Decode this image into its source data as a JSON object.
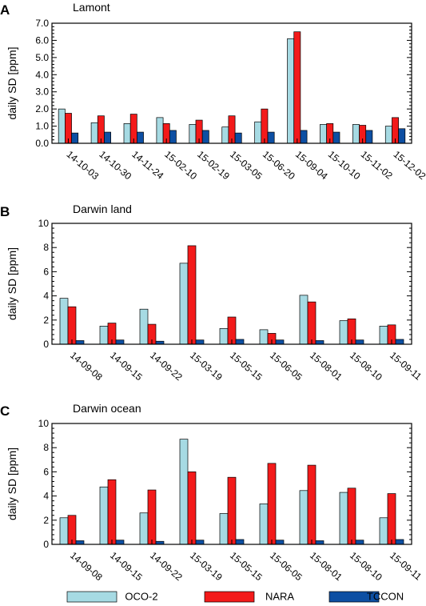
{
  "colors": {
    "OCO-2": "#a6dae3",
    "NARA": "#f31a1a",
    "TCCON": "#0d4fa3"
  },
  "legend": [
    "OCO-2",
    "NARA",
    "TCCON"
  ],
  "chart_data": [
    {
      "type": "bar",
      "panel": "A",
      "title": "Lamont",
      "ylabel": "daily SD [ppm]",
      "ylim": [
        0,
        7
      ],
      "yticks": [
        "0.0",
        "1.0",
        "2.0",
        "3.0",
        "4.0",
        "5.0",
        "6.0",
        "7.0"
      ],
      "categories": [
        "14-10-03",
        "14-10-30",
        "14-11-24",
        "15-02-10",
        "15-02-19",
        "15-03-05",
        "15-06-20",
        "15-09-04",
        "15-10-10",
        "15-11-02",
        "15-12-02"
      ],
      "series": [
        {
          "name": "OCO-2",
          "values": [
            2.0,
            1.2,
            1.15,
            1.5,
            1.1,
            0.95,
            1.25,
            6.1,
            1.1,
            1.1,
            1.0
          ]
        },
        {
          "name": "NARA",
          "values": [
            1.75,
            1.6,
            1.7,
            1.15,
            1.35,
            1.6,
            2.0,
            6.5,
            1.15,
            1.05,
            1.5
          ]
        },
        {
          "name": "TCCON",
          "values": [
            0.6,
            0.65,
            0.65,
            0.75,
            0.75,
            0.6,
            0.65,
            0.75,
            0.65,
            0.75,
            0.85
          ]
        }
      ]
    },
    {
      "type": "bar",
      "panel": "B",
      "title": "Darwin land",
      "ylabel": "daily SD [ppm]",
      "ylim": [
        0,
        10
      ],
      "yticks": [
        "0",
        "2",
        "4",
        "6",
        "8",
        "10"
      ],
      "categories": [
        "14-09-08",
        "14-09-15",
        "14-09-22",
        "15-03-19",
        "15-05-15",
        "15-06-05",
        "15-08-01",
        "15-08-10",
        "15-09-11"
      ],
      "series": [
        {
          "name": "OCO-2",
          "values": [
            3.8,
            1.5,
            2.9,
            6.7,
            1.3,
            1.2,
            4.05,
            1.95,
            1.5
          ]
        },
        {
          "name": "NARA",
          "values": [
            3.1,
            1.75,
            1.65,
            8.15,
            2.25,
            0.9,
            3.5,
            2.1,
            1.6
          ]
        },
        {
          "name": "TCCON",
          "values": [
            0.3,
            0.35,
            0.25,
            0.35,
            0.4,
            0.35,
            0.3,
            0.35,
            0.4
          ]
        }
      ]
    },
    {
      "type": "bar",
      "panel": "C",
      "title": "Darwin ocean",
      "ylabel": "daily SD [ppm]",
      "ylim": [
        0,
        10
      ],
      "yticks": [
        "0",
        "2",
        "4",
        "6",
        "8",
        "10"
      ],
      "categories": [
        "14-09-08",
        "14-09-15",
        "14-09-22",
        "15-03-19",
        "15-05-15",
        "15-06-05",
        "15-08-01",
        "15-08-10",
        "15-09-11"
      ],
      "series": [
        {
          "name": "OCO-2",
          "values": [
            2.2,
            4.75,
            2.6,
            8.7,
            2.55,
            3.35,
            4.45,
            4.3,
            2.2
          ]
        },
        {
          "name": "NARA",
          "values": [
            2.4,
            5.35,
            4.5,
            6.0,
            5.55,
            6.7,
            6.55,
            4.65,
            4.2
          ]
        },
        {
          "name": "TCCON",
          "values": [
            0.3,
            0.35,
            0.25,
            0.35,
            0.4,
            0.35,
            0.3,
            0.35,
            0.4
          ]
        }
      ]
    }
  ]
}
